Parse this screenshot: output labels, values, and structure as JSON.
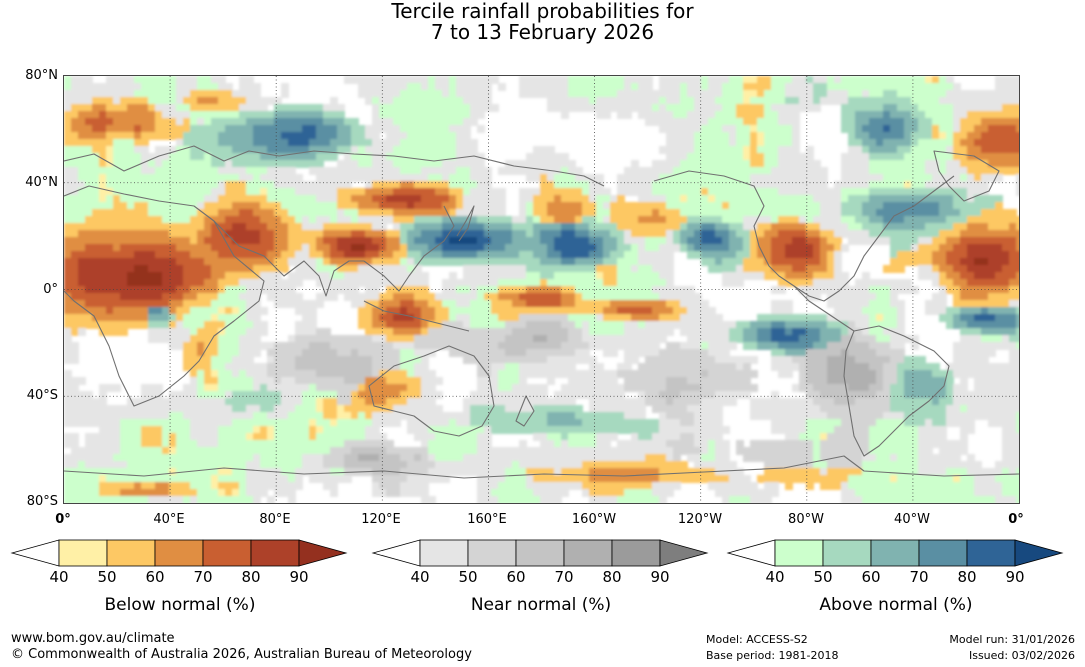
{
  "title": {
    "line1": "Tercile rainfall probabilities for",
    "line2": "7 to 13 February 2026"
  },
  "map": {
    "lat_labels": [
      "80°N",
      "40°N",
      "0°",
      "40°S",
      "80°S"
    ],
    "lon_labels": [
      "0°",
      "40°E",
      "80°E",
      "120°E",
      "160°E",
      "160°W",
      "120°W",
      "80°W",
      "40°W",
      "0°"
    ],
    "graticule": "dotted",
    "colors": {
      "below": [
        "#fff0a6",
        "#fdc864",
        "#e08e42",
        "#c95f31",
        "#ad4129",
        "#94301f"
      ],
      "near": [
        "#e5e5e5",
        "#d4d4d4",
        "#c4c4c4",
        "#b0b0b0",
        "#9b9b9b",
        "#7e7e7e"
      ],
      "above": [
        "#ccffcc",
        "#a6d9bf",
        "#80b3b0",
        "#5a8fa3",
        "#2f6496",
        "#17497f"
      ]
    }
  },
  "legends": [
    {
      "caption": "Below normal (%)",
      "ticks": [
        "40",
        "50",
        "60",
        "70",
        "80",
        "90"
      ],
      "colors": [
        "#fff0a6",
        "#fdc864",
        "#e08e42",
        "#c95f31",
        "#ad4129",
        "#94301f"
      ]
    },
    {
      "caption": "Near normal (%)",
      "ticks": [
        "40",
        "50",
        "60",
        "70",
        "80",
        "90"
      ],
      "colors": [
        "#e5e5e5",
        "#d4d4d4",
        "#c4c4c4",
        "#b0b0b0",
        "#9b9b9b",
        "#7e7e7e"
      ]
    },
    {
      "caption": "Above normal (%)",
      "ticks": [
        "40",
        "50",
        "60",
        "70",
        "80",
        "90"
      ],
      "colors": [
        "#ccffcc",
        "#a6d9bf",
        "#80b3b0",
        "#5a8fa3",
        "#2f6496",
        "#17497f"
      ]
    }
  ],
  "footer": {
    "website": "www.bom.gov.au/climate",
    "copyright": "© Commonwealth of Australia 2026, Australian Bureau of Meteorology",
    "model": "Model: ACCESS-S2",
    "base_period": "Base period: 1981-2018",
    "model_run": "Model run: 31/01/2026",
    "issued": "Issued: 03/02/2026"
  }
}
